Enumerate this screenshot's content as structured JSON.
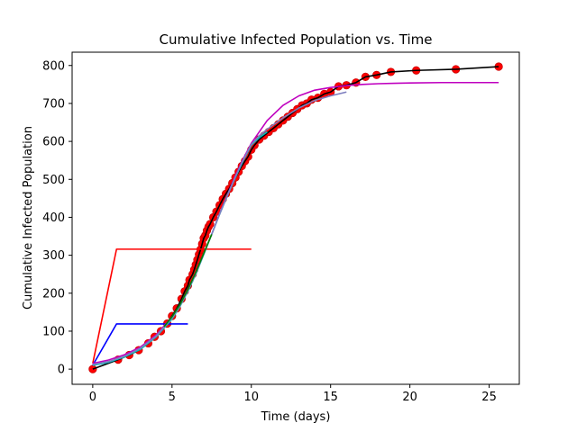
{
  "chart_data": {
    "type": "line",
    "title": "Cumulative Infected Population vs. Time",
    "xlabel": "Time (days)",
    "ylabel": "Cumulative Infected Population",
    "xlim": [
      -1.3,
      26.9
    ],
    "ylim": [
      -40,
      835
    ],
    "xticks": [
      0,
      5,
      10,
      15,
      20,
      25
    ],
    "yticks": [
      0,
      100,
      200,
      300,
      400,
      500,
      600,
      700,
      800
    ],
    "grid": false,
    "legend": "none",
    "colors": {
      "points": "#ff0000",
      "points_edge": "#cc0000",
      "data_line": "#000000",
      "fit_a": "#00bfbf",
      "fit_b": "#7f7fbf",
      "fit_c": "#bf00bf",
      "fit_d": "#ff0000",
      "fit_e": "#0000ff",
      "fit_f": "#008000"
    },
    "observed_points": {
      "x": [
        0,
        1.6,
        2.3,
        2.9,
        3.5,
        3.9,
        4.3,
        4.7,
        5.0,
        5.3,
        5.6,
        5.8,
        6.0,
        6.1,
        6.3,
        6.4,
        6.5,
        6.6,
        6.7,
        6.8,
        6.9,
        7.0,
        7.1,
        7.2,
        7.3,
        7.4,
        7.6,
        7.8,
        8.0,
        8.2,
        8.4,
        8.6,
        8.8,
        9.0,
        9.2,
        9.4,
        9.6,
        9.8,
        10.0,
        10.2,
        10.5,
        10.8,
        11.1,
        11.4,
        11.7,
        12.0,
        12.3,
        12.6,
        12.9,
        13.2,
        13.5,
        13.8,
        14.2,
        14.6,
        15.0,
        15.5,
        16.0,
        16.6,
        17.2,
        17.9,
        18.8,
        20.4,
        22.9,
        25.6
      ],
      "y": [
        0,
        25,
        37,
        50,
        68,
        85,
        100,
        120,
        140,
        160,
        185,
        205,
        220,
        235,
        250,
        262,
        275,
        288,
        302,
        315,
        330,
        345,
        352,
        365,
        375,
        382,
        400,
        415,
        432,
        448,
        462,
        475,
        490,
        505,
        520,
        535,
        548,
        560,
        578,
        590,
        605,
        615,
        625,
        635,
        645,
        655,
        665,
        675,
        685,
        695,
        700,
        710,
        715,
        725,
        730,
        745,
        748,
        755,
        770,
        775,
        783,
        787,
        790,
        797
      ]
    },
    "series": [
      {
        "type": "line",
        "x": [
          0,
          1.6,
          2.3,
          2.9,
          3.5,
          3.9,
          4.3,
          4.7,
          5.0,
          5.3,
          5.6,
          5.8,
          6.0,
          6.1,
          6.3,
          6.4,
          6.5,
          6.6,
          6.7,
          6.8,
          6.9,
          7.0,
          7.1,
          7.2,
          7.3,
          7.4,
          7.6,
          7.8,
          8.0,
          8.2,
          8.4,
          8.6,
          8.8,
          9.0,
          9.2,
          9.4,
          9.6,
          9.8,
          10.0,
          10.2,
          10.5,
          10.8,
          11.1,
          11.4,
          11.7,
          12.0,
          12.3,
          12.6,
          12.9,
          13.2,
          13.5,
          13.8,
          14.2,
          14.6,
          15.0,
          15.5,
          16.0,
          16.6,
          17.2,
          17.9,
          18.8,
          20.4,
          22.9,
          25.6
        ],
        "y": [
          0,
          25,
          37,
          50,
          68,
          85,
          100,
          120,
          140,
          160,
          185,
          205,
          220,
          235,
          250,
          262,
          275,
          288,
          302,
          315,
          330,
          345,
          352,
          365,
          375,
          382,
          400,
          415,
          432,
          448,
          462,
          475,
          490,
          505,
          520,
          535,
          548,
          560,
          578,
          590,
          605,
          615,
          625,
          635,
          645,
          655,
          665,
          675,
          685,
          695,
          700,
          710,
          715,
          725,
          730,
          745,
          748,
          755,
          770,
          775,
          783,
          787,
          790,
          797
        ]
      },
      {
        "type": "line",
        "x": [
          0,
          1.5,
          10
        ],
        "y": [
          15,
          316,
          316
        ]
      },
      {
        "type": "line",
        "x": [
          0,
          1.5,
          6.0
        ],
        "y": [
          10,
          119,
          119
        ]
      },
      {
        "type": "line",
        "x": [
          0,
          1,
          2,
          3,
          4,
          5,
          5.5,
          6,
          6.5,
          7,
          7.5,
          8,
          8.5,
          9,
          9.5,
          10,
          11,
          12,
          13,
          14,
          15,
          16,
          17,
          18,
          19,
          20,
          22,
          24,
          25.6
        ],
        "y": [
          15,
          24,
          38,
          58,
          90,
          138,
          170,
          210,
          255,
          305,
          355,
          410,
          460,
          510,
          555,
          595,
          655,
          695,
          720,
          735,
          742,
          747,
          750,
          752,
          753,
          754,
          755,
          755,
          755
        ]
      },
      {
        "type": "line",
        "x": [
          0,
          1,
          2,
          3,
          4,
          5,
          5.5,
          6,
          6.5,
          7,
          7.5,
          8,
          8.5,
          9,
          9.5,
          10,
          10.5,
          11
        ],
        "y": [
          10,
          18,
          32,
          52,
          85,
          132,
          165,
          205,
          250,
          302,
          355,
          408,
          458,
          505,
          550,
          590,
          610,
          625
        ]
      },
      {
        "type": "line",
        "x": [
          0,
          1,
          2,
          3,
          4,
          5,
          5.5,
          6,
          6.5,
          7,
          7.5,
          8,
          8.5,
          9,
          9.5,
          10,
          10.5,
          11,
          12,
          13,
          14,
          15,
          16
        ],
        "y": [
          12,
          20,
          34,
          55,
          87,
          135,
          167,
          207,
          252,
          303,
          355,
          408,
          458,
          507,
          552,
          592,
          615,
          632,
          662,
          688,
          708,
          720,
          730
        ]
      },
      {
        "type": "line",
        "x": [
          4.5,
          5,
          5.5,
          6,
          6.5,
          7,
          7.5
        ],
        "y": [
          112,
          138,
          170,
          210,
          255,
          305,
          355
        ]
      }
    ]
  }
}
